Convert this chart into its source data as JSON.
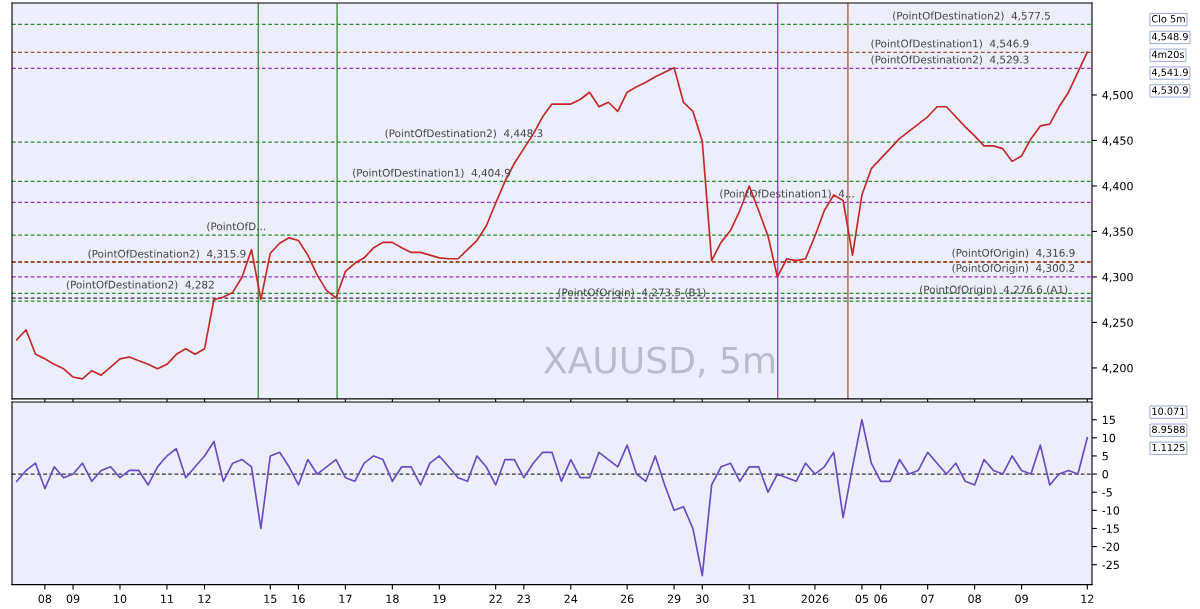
{
  "chart_data": [
    {
      "type": "line",
      "title": "XAUUSD, 5m",
      "categories": [
        null,
        null,
        null,
        "08",
        null,
        null,
        "09",
        null,
        null,
        null,
        null,
        "10",
        null,
        null,
        null,
        null,
        "11",
        null,
        null,
        null,
        "12",
        null,
        null,
        null,
        null,
        null,
        null,
        "15",
        null,
        null,
        "16",
        null,
        null,
        null,
        null,
        "17",
        null,
        null,
        null,
        null,
        "18",
        null,
        null,
        null,
        null,
        "19",
        null,
        null,
        null,
        null,
        null,
        "22",
        null,
        null,
        "23",
        null,
        null,
        null,
        null,
        "24",
        null,
        null,
        null,
        null,
        null,
        "26",
        null,
        null,
        null,
        null,
        "29",
        null,
        null,
        "30",
        null,
        null,
        null,
        null,
        "31",
        null,
        null,
        null,
        null,
        null,
        null,
        "2026",
        null,
        null,
        null,
        null,
        "05",
        null,
        "06",
        null,
        null,
        null,
        null,
        "07",
        null,
        null,
        null,
        null,
        "08",
        null,
        null,
        null,
        null,
        "09",
        null,
        null,
        null,
        null,
        null,
        null,
        "12"
      ],
      "series": [
        {
          "color": "#c62828",
          "values": [
            4231,
            4242,
            4215,
            4210,
            4204,
            4199,
            4190,
            4188,
            4197,
            4192,
            4201,
            4210,
            4212,
            4208,
            4204,
            4199,
            4204,
            4215,
            4221,
            4215,
            4221,
            4275,
            4278,
            4283,
            4300,
            4330,
            4275,
            4326,
            4337,
            4343,
            4340,
            4324,
            4302,
            4285,
            4277,
            4306,
            4315,
            4321,
            4332,
            4338,
            4338,
            4332,
            4327,
            4327,
            4324,
            4321,
            4320,
            4320,
            4330,
            4340,
            4356,
            4381,
            4405,
            4425,
            4441,
            4457,
            4476,
            4490,
            4490,
            4490,
            4495,
            4503,
            4487,
            4492,
            4482,
            4503,
            4509,
            4514,
            4520,
            4525,
            4530,
            4492,
            4482,
            4449,
            4318,
            4338,
            4351,
            4373,
            4400,
            4373,
            4345,
            4300,
            4320,
            4318,
            4320,
            4345,
            4373,
            4390,
            4384,
            4324,
            4390,
            4419,
            4430,
            4441,
            4452,
            4460,
            4468,
            4476,
            4487,
            4487,
            4476,
            4465,
            4455,
            4444,
            4444,
            4441,
            4427,
            4433,
            4452,
            4466,
            4468,
            4487,
            4503,
            4525,
            4547
          ]
        }
      ],
      "ylim": [
        4166,
        4601
      ],
      "yticks": [
        {
          "value": 4200,
          "label": "4,200"
        },
        {
          "value": 4250,
          "label": "4,250"
        },
        {
          "value": 4300,
          "label": "4,300"
        },
        {
          "value": 4350,
          "label": "4,350"
        },
        {
          "value": 4400,
          "label": "4,400"
        },
        {
          "value": 4450,
          "label": "4,450"
        },
        {
          "value": 4500,
          "label": "4,500"
        }
      ],
      "tick_labels": "y",
      "ref_lines": [
        {
          "axis": "y",
          "value": 4577.5,
          "color": "#2e8b2e",
          "line_style": "dashed"
        },
        {
          "axis": "y",
          "value": 4546.9,
          "color": "#a0522d",
          "line_style": "dashed"
        },
        {
          "axis": "y",
          "value": 4529.3,
          "color": "#9b30d0",
          "line_style": "dashed"
        },
        {
          "axis": "y",
          "value": 4448.3,
          "color": "#2e8b2e",
          "line_style": "dashed"
        },
        {
          "axis": "y",
          "value": 4404.9,
          "color": "#2e8b2e",
          "line_style": "dashed"
        },
        {
          "axis": "y",
          "value": 4382,
          "color": "#9b30d0",
          "line_style": "dashed"
        },
        {
          "axis": "y",
          "value": 4346,
          "color": "#2e8b2e",
          "line_style": "dashed"
        },
        {
          "axis": "y",
          "value": 4316.9,
          "color": "#a0522d",
          "line_style": "dashed"
        },
        {
          "axis": "y",
          "value": 4315.9,
          "color": "#a0522d",
          "line_style": "dashed"
        },
        {
          "axis": "y",
          "value": 4300.2,
          "color": "#9b30d0",
          "line_style": "dashed"
        },
        {
          "axis": "y",
          "value": 4282,
          "color": "#2e8b2e",
          "line_style": "dashed"
        },
        {
          "axis": "y",
          "value": 4276.6,
          "color": "#333333",
          "line_style": "dashed"
        },
        {
          "axis": "y",
          "value": 4273.5,
          "color": "#2e8b2e",
          "line_style": "dashed"
        }
      ],
      "annotations": [
        {
          "text": "(PointOfDestination2)  4,577.5",
          "y": 4577.5
        },
        {
          "text": "(PointOfDestination1)  4,546.9",
          "y": 4546.9
        },
        {
          "text": "(PointOfDestination2)  4,529.3",
          "y": 4529.3
        },
        {
          "text": "(PointOfDestination2)  4,448.3",
          "y": 4448.3
        },
        {
          "text": "(PointOfDestination1)  4,404.9",
          "y": 4404.9
        },
        {
          "text": "(PointOfDestination1)  4...",
          "y": 4382
        },
        {
          "text": "(PointOfD...",
          "y": 4346
        },
        {
          "text": "(PointOfDestination2)  4,315.9",
          "y": 4315.9
        },
        {
          "text": "(PointOfDestination2)  4,282",
          "y": 4282
        },
        {
          "text": "(PointOfOrigin)  4,316.9",
          "y": 4316.9
        },
        {
          "text": "(PointOfOrigin)  4,300.2",
          "y": 4300.2
        },
        {
          "text": "(PointOfOrigin)  4,276.6 (A1)",
          "y": 4276.6
        },
        {
          "text": "(PointOfOrigin)  4,273.5 (B1)",
          "y": 4273.5
        },
        "Clo 5m",
        "4,548.9",
        "4m20s",
        "4,541.9",
        "4,530.9"
      ]
    },
    {
      "type": "line",
      "categories": [
        null,
        null,
        null,
        "08",
        null,
        null,
        "09",
        null,
        null,
        null,
        null,
        "10",
        null,
        null,
        null,
        null,
        "11",
        null,
        null,
        null,
        "12",
        null,
        null,
        null,
        null,
        null,
        null,
        "15",
        null,
        null,
        "16",
        null,
        null,
        null,
        null,
        "17",
        null,
        null,
        null,
        null,
        "18",
        null,
        null,
        null,
        null,
        "19",
        null,
        null,
        null,
        null,
        null,
        "22",
        null,
        null,
        "23",
        null,
        null,
        null,
        null,
        "24",
        null,
        null,
        null,
        null,
        null,
        "26",
        null,
        null,
        null,
        null,
        "29",
        null,
        null,
        "30",
        null,
        null,
        null,
        null,
        "31",
        null,
        null,
        null,
        null,
        null,
        null,
        "2026",
        null,
        null,
        null,
        null,
        "05",
        null,
        "06",
        null,
        null,
        null,
        null,
        "07",
        null,
        null,
        null,
        null,
        "08",
        null,
        null,
        null,
        null,
        "09",
        null,
        null,
        null,
        null,
        null,
        null,
        "12"
      ],
      "series": [
        {
          "color": "#6a4bc4",
          "values": [
            -2,
            1,
            3,
            -4,
            2,
            -1,
            0,
            3,
            -2,
            1,
            2,
            -1,
            1,
            1,
            -3,
            2,
            5,
            7,
            -1,
            2,
            5,
            9,
            -2,
            3,
            4,
            2,
            -15,
            5,
            6,
            2,
            -3,
            4,
            0,
            2,
            4,
            -1,
            -2,
            3,
            5,
            4,
            -2,
            2,
            2,
            -3,
            3,
            5,
            2,
            -1,
            -2,
            5,
            2,
            -3,
            4,
            4,
            -1,
            3,
            6,
            6,
            -2,
            4,
            -1,
            -1,
            6,
            4,
            2,
            8,
            0,
            -2,
            5,
            -3,
            -10,
            -9,
            -15,
            -28,
            -3,
            2,
            3,
            -2,
            2,
            2,
            -5,
            0,
            -1,
            -2,
            3,
            0,
            2,
            6,
            -12,
            2,
            15,
            3,
            -2,
            -2,
            4,
            0,
            1,
            6,
            3,
            0,
            3,
            -2,
            -3,
            4,
            1,
            0,
            5,
            1,
            0,
            8,
            -3,
            0,
            1,
            0,
            10
          ]
        }
      ],
      "ylim": [
        -30.5,
        19.9
      ],
      "yticks": [
        {
          "value": -25,
          "label": "-25"
        },
        {
          "value": -20,
          "label": "-20"
        },
        {
          "value": -15,
          "label": "-15"
        },
        {
          "value": -10,
          "label": "-10"
        },
        {
          "value": -5,
          "label": "-5"
        },
        0,
        5,
        10,
        15
      ],
      "ref_lines": [
        {
          "axis": "y",
          "value": 0,
          "color": "#333333",
          "line_style": "dashed"
        }
      ],
      "annotations": [
        "10.071",
        "8.9588",
        "1.1125"
      ]
    }
  ]
}
